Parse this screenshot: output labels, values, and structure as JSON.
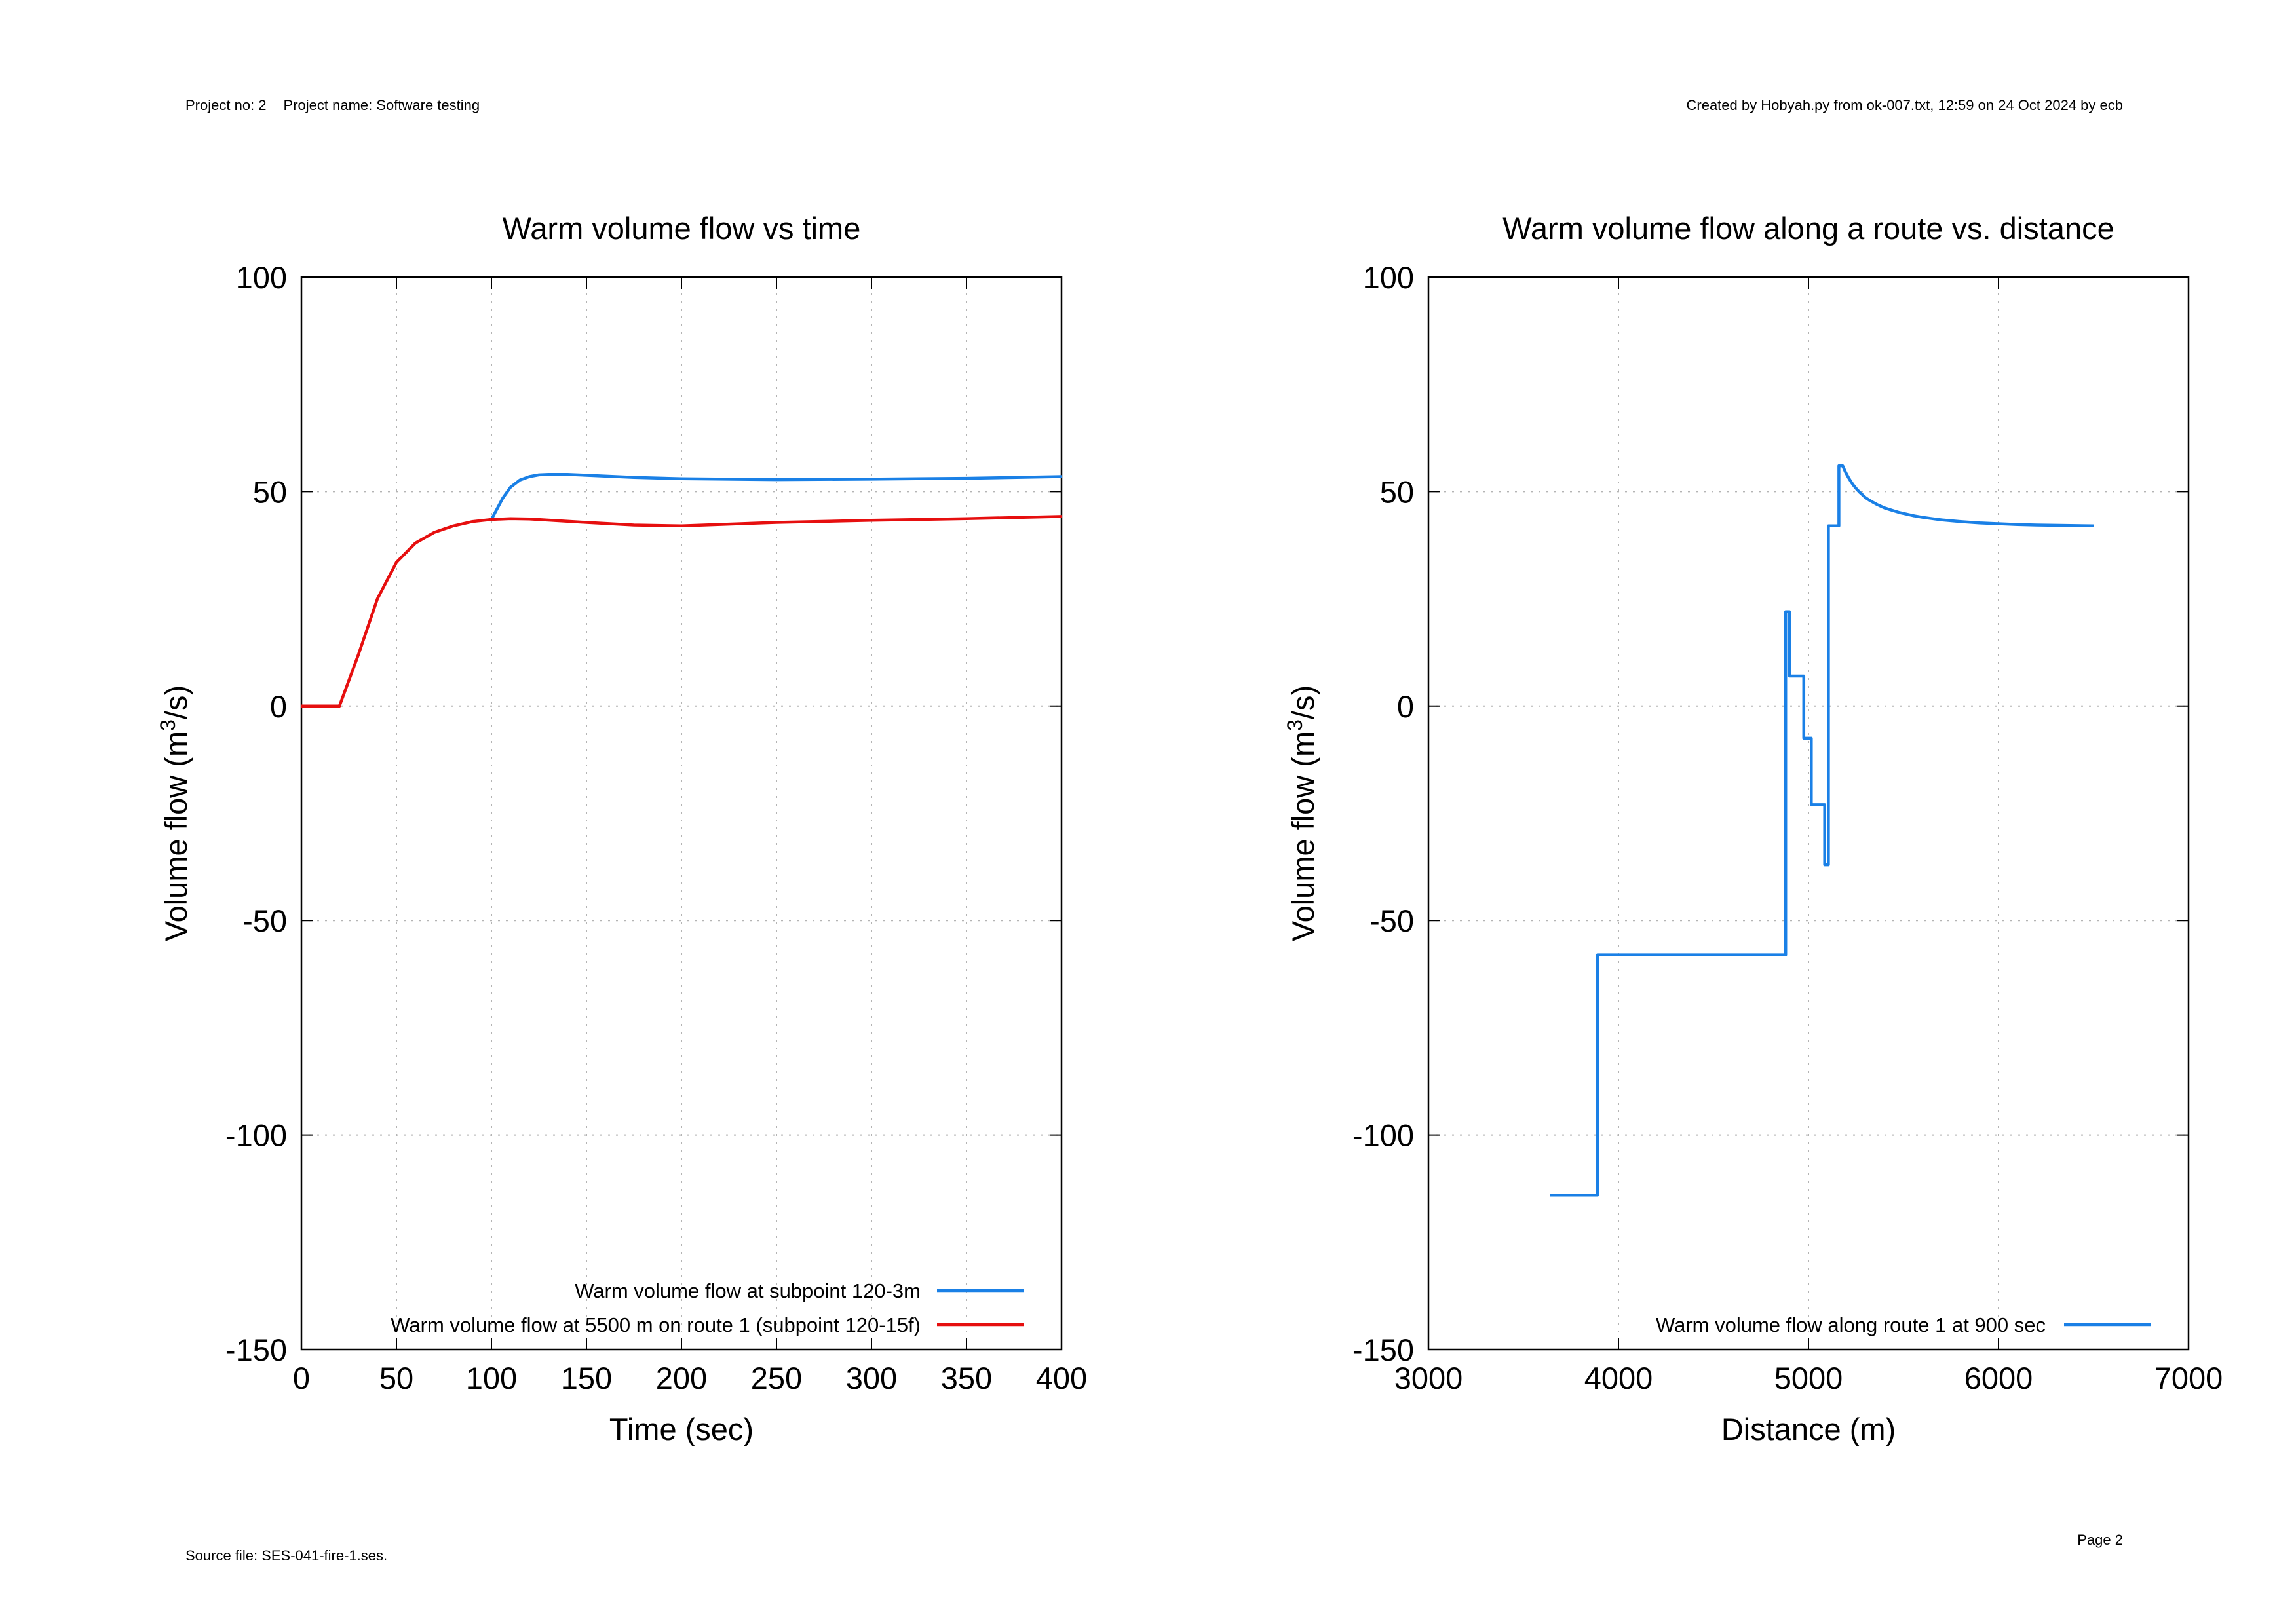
{
  "header": {
    "project_no": "Project no: 2",
    "project_name": "Project name: Software testing",
    "created_by": "Created by Hobyah.py from ok-007.txt, 12:59 on 24 Oct 2024 by ecb"
  },
  "footer": {
    "source_file": "Source file: SES-041-fire-1.ses.",
    "page": "Page 2"
  },
  "chart_data": [
    {
      "type": "line",
      "title": "Warm volume flow vs time",
      "xlabel": "Time (sec)",
      "ylabel": "Volume flow (m3/s)",
      "xlim": [
        0,
        400
      ],
      "ylim": [
        -150,
        100
      ],
      "xticks": [
        0,
        50,
        100,
        150,
        200,
        250,
        300,
        350,
        400
      ],
      "yticks": [
        -150,
        -100,
        -50,
        0,
        50,
        100
      ],
      "grid": true,
      "legend_position": "bottom-right",
      "series": [
        {
          "name": "Warm volume flow at subpoint 120-3m",
          "color": "#1a80e6",
          "x": [
            100,
            103,
            106,
            110,
            115,
            120,
            125,
            130,
            140,
            150,
            175,
            200,
            250,
            300,
            350,
            400
          ],
          "y": [
            43.5,
            46,
            48.5,
            51,
            52.7,
            53.5,
            53.9,
            54.0,
            54.0,
            53.8,
            53.3,
            53.0,
            52.8,
            52.9,
            53.1,
            53.5
          ]
        },
        {
          "name": "Warm volume flow at 5500 m on route 1 (subpoint 120-15f)",
          "color": "#e60f0f",
          "x": [
            0,
            20,
            30,
            40,
            50,
            60,
            70,
            80,
            90,
            100,
            110,
            120,
            150,
            175,
            200,
            250,
            300,
            350,
            400
          ],
          "y": [
            0,
            0,
            12,
            25,
            33.5,
            38,
            40.5,
            42,
            43,
            43.5,
            43.7,
            43.6,
            42.8,
            42.2,
            42.0,
            42.8,
            43.3,
            43.7,
            44.2
          ]
        }
      ]
    },
    {
      "type": "line",
      "title": "Warm volume flow along a route vs. distance",
      "xlabel": "Distance (m)",
      "ylabel": "Volume flow (m3/s)",
      "xlim": [
        3000,
        7000
      ],
      "ylim": [
        -150,
        100
      ],
      "xticks": [
        3000,
        4000,
        5000,
        6000,
        7000
      ],
      "yticks": [
        -150,
        -100,
        -50,
        0,
        50,
        100
      ],
      "grid": true,
      "legend_position": "bottom-right",
      "series": [
        {
          "name": "Warm volume flow along route 1 at 900 sec",
          "color": "#1a80e6",
          "x": [
            3640,
            3890,
            3890,
            4880,
            4880,
            4900,
            4900,
            4975,
            4975,
            5015,
            5015,
            5085,
            5085,
            5105,
            5105,
            5160,
            5160,
            5180,
            5195,
            5210,
            5225,
            5240,
            5255,
            5270,
            5285,
            5300,
            5320,
            5340,
            5360,
            5380,
            5400,
            5420,
            5450,
            5480,
            5510,
            5550,
            5600,
            5650,
            5700,
            5800,
            5900,
            6000,
            6100,
            6200,
            6350,
            6500
          ],
          "y": [
            -114,
            -114,
            -58,
            -58,
            22,
            22,
            7,
            7,
            -7.5,
            -7.5,
            -23,
            -23,
            -37,
            -37,
            42,
            42,
            56,
            56,
            54.5,
            53.3,
            52.2,
            51.3,
            50.5,
            49.8,
            49.2,
            48.6,
            48,
            47.5,
            47,
            46.6,
            46.2,
            45.9,
            45.5,
            45.1,
            44.8,
            44.4,
            44,
            43.7,
            43.4,
            43,
            42.7,
            42.5,
            42.3,
            42.2,
            42.1,
            42.0
          ]
        }
      ]
    }
  ]
}
